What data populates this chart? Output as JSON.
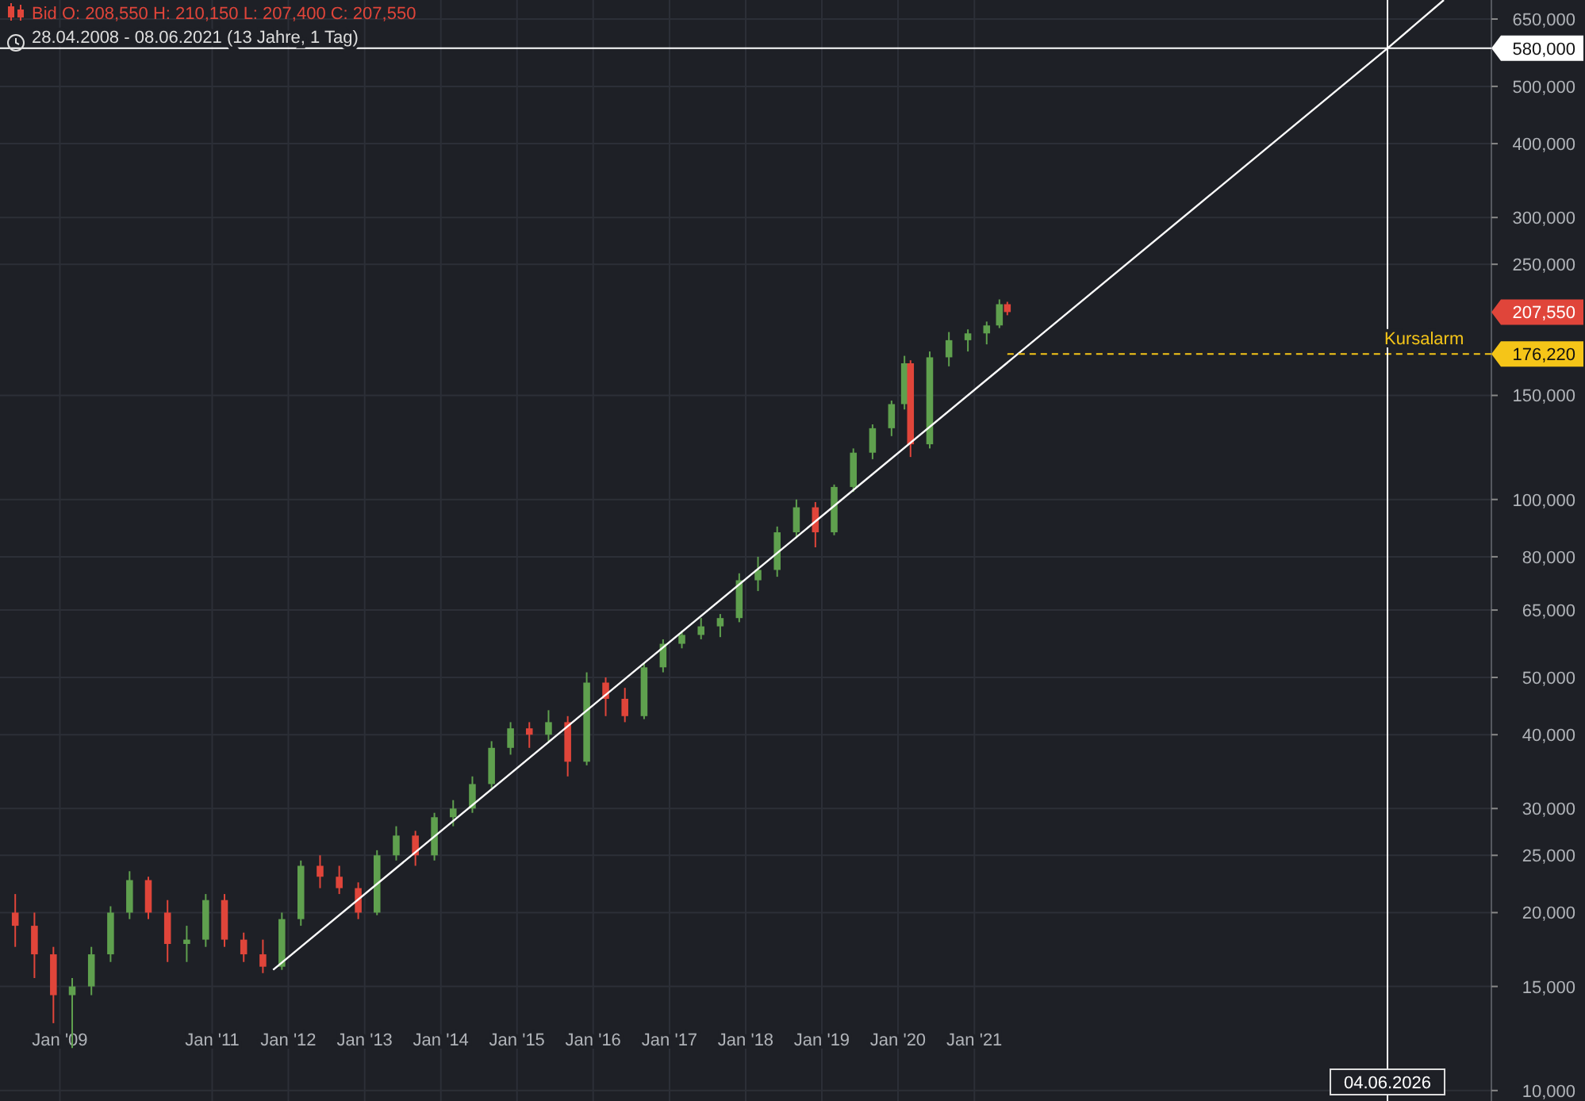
{
  "chart_data": {
    "type": "candlestick",
    "title": "Bid  O: 208,550  H: 210,150  L: 207,400  C: 207,550",
    "subtitle": "28.04.2008 - 08.06.2021  (13 Jahre, 1 Tag)",
    "log": true,
    "grid": true,
    "xlim": [
      "2008-03-20",
      "2027-10-15"
    ],
    "xticks": [
      {
        "value": "2009-01-01",
        "label": "Jan '09"
      },
      {
        "value": "2011-01-01",
        "label": "Jan '11"
      },
      {
        "value": "2012-01-01",
        "label": "Jan '12"
      },
      {
        "value": "2013-01-01",
        "label": "Jan '13"
      },
      {
        "value": "2014-01-01",
        "label": "Jan '14"
      },
      {
        "value": "2015-01-01",
        "label": "Jan '15"
      },
      {
        "value": "2016-01-01",
        "label": "Jan '16"
      },
      {
        "value": "2017-01-01",
        "label": "Jan '17"
      },
      {
        "value": "2018-01-01",
        "label": "Jan '18"
      },
      {
        "value": "2019-01-01",
        "label": "Jan '19"
      },
      {
        "value": "2020-01-01",
        "label": "Jan '20"
      },
      {
        "value": "2021-01-01",
        "label": "Jan '21"
      }
    ],
    "ylim": [
      9600,
      700000
    ],
    "yticks": [
      {
        "value": 10000,
        "label": "10,000"
      },
      {
        "value": 15000,
        "label": "15,000"
      },
      {
        "value": 20000,
        "label": "20,000"
      },
      {
        "value": 25000,
        "label": "25,000"
      },
      {
        "value": 30000,
        "label": "30,000"
      },
      {
        "value": 40000,
        "label": "40,000"
      },
      {
        "value": 50000,
        "label": "50,000"
      },
      {
        "value": 65000,
        "label": "65,000"
      },
      {
        "value": 80000,
        "label": "80,000"
      },
      {
        "value": 100000,
        "label": "100,000"
      },
      {
        "value": 150000,
        "label": "150,000"
      },
      {
        "value": 250000,
        "label": "250,000"
      },
      {
        "value": 300000,
        "label": "300,000"
      },
      {
        "value": 400000,
        "label": "400,000"
      },
      {
        "value": 500000,
        "label": "500,000"
      },
      {
        "value": 650000,
        "label": "650,000"
      }
    ],
    "series": [
      {
        "x": [
          "2008-06",
          "2008-09",
          "2008-12",
          "2009-03",
          "2009-06",
          "2009-09",
          "2009-12",
          "2010-03",
          "2010-06",
          "2010-09",
          "2010-12",
          "2011-03",
          "2011-06",
          "2011-09",
          "2011-12",
          "2012-03",
          "2012-06",
          "2012-09",
          "2012-12",
          "2013-03",
          "2013-06",
          "2013-09",
          "2013-12",
          "2014-03",
          "2014-06",
          "2014-09",
          "2014-12",
          "2015-03",
          "2015-06",
          "2015-09",
          "2015-12",
          "2016-03",
          "2016-06",
          "2016-09",
          "2016-12",
          "2017-03",
          "2017-06",
          "2017-09",
          "2017-12",
          "2018-03",
          "2018-06",
          "2018-09",
          "2018-12",
          "2019-03",
          "2019-06",
          "2019-09",
          "2019-12",
          "2020-02",
          "2020-03",
          "2020-06",
          "2020-09",
          "2020-12",
          "2021-03",
          "2021-05",
          "2021-06-08"
        ],
        "ohlc": [
          [
            20000,
            21500,
            17500,
            19000
          ],
          [
            19000,
            20000,
            15500,
            17000
          ],
          [
            17000,
            17500,
            13000,
            14500
          ],
          [
            14500,
            15500,
            11800,
            15000
          ],
          [
            15000,
            17500,
            14500,
            17000
          ],
          [
            17000,
            20500,
            16500,
            20000
          ],
          [
            20000,
            23500,
            19500,
            22700
          ],
          [
            22700,
            23000,
            19500,
            20000
          ],
          [
            20000,
            21000,
            16500,
            17700
          ],
          [
            17700,
            19000,
            16500,
            18000
          ],
          [
            18000,
            21500,
            17500,
            21000
          ],
          [
            21000,
            21500,
            17500,
            18000
          ],
          [
            18000,
            18500,
            16500,
            17000
          ],
          [
            17000,
            18000,
            15800,
            16200
          ],
          [
            16200,
            20000,
            16000,
            19500
          ],
          [
            19500,
            24500,
            19000,
            24000
          ],
          [
            24000,
            25000,
            22000,
            23000
          ],
          [
            23000,
            24000,
            21500,
            22000
          ],
          [
            22000,
            22500,
            19500,
            20000
          ],
          [
            20000,
            25500,
            19800,
            25000
          ],
          [
            25000,
            28000,
            24500,
            27000
          ],
          [
            27000,
            27500,
            24000,
            25000
          ],
          [
            25000,
            29500,
            24500,
            29000
          ],
          [
            29000,
            31000,
            28000,
            30000
          ],
          [
            30000,
            34000,
            29500,
            33000
          ],
          [
            33000,
            39000,
            32500,
            38000
          ],
          [
            38000,
            42000,
            37000,
            41000
          ],
          [
            41000,
            42000,
            38000,
            40000
          ],
          [
            40000,
            44000,
            39000,
            42000
          ],
          [
            42000,
            43000,
            34000,
            36000
          ],
          [
            36000,
            51000,
            35500,
            49000
          ],
          [
            49000,
            50000,
            43000,
            46000
          ],
          [
            46000,
            48000,
            42000,
            43000
          ],
          [
            43000,
            53000,
            42500,
            52000
          ],
          [
            52000,
            58000,
            51000,
            57000
          ],
          [
            57000,
            60000,
            56000,
            59000
          ],
          [
            59000,
            63000,
            58000,
            61000
          ],
          [
            61000,
            64000,
            58500,
            63000
          ],
          [
            63000,
            75000,
            62000,
            73000
          ],
          [
            73000,
            80000,
            70000,
            76000
          ],
          [
            76000,
            90000,
            74000,
            88000
          ],
          [
            88000,
            100000,
            86000,
            97000
          ],
          [
            97000,
            99000,
            83000,
            88000
          ],
          [
            88000,
            106000,
            87000,
            105000
          ],
          [
            105000,
            122000,
            103000,
            120000
          ],
          [
            120000,
            134000,
            117000,
            132000
          ],
          [
            132000,
            147000,
            128000,
            145000
          ],
          [
            145000,
            175000,
            142000,
            170000
          ],
          [
            170000,
            172000,
            118000,
            124000
          ],
          [
            124000,
            178000,
            122000,
            174000
          ],
          [
            174000,
            192000,
            168000,
            186000
          ],
          [
            186000,
            194000,
            178000,
            191000
          ],
          [
            191000,
            200000,
            183000,
            197000
          ],
          [
            197000,
            218000,
            195000,
            214000
          ],
          [
            214000,
            216000,
            205000,
            207550
          ]
        ],
        "colors": [
          "#e0453a",
          "#e0453a",
          "#e0453a",
          "#5fa04e",
          "#5fa04e",
          "#5fa04e",
          "#5fa04e",
          "#e0453a",
          "#e0453a",
          "#5fa04e",
          "#5fa04e",
          "#e0453a",
          "#e0453a",
          "#e0453a",
          "#5fa04e",
          "#5fa04e",
          "#e0453a",
          "#e0453a",
          "#e0453a",
          "#5fa04e",
          "#5fa04e",
          "#e0453a",
          "#5fa04e",
          "#5fa04e",
          "#5fa04e",
          "#5fa04e",
          "#5fa04e",
          "#e0453a",
          "#5fa04e",
          "#e0453a",
          "#5fa04e",
          "#e0453a",
          "#e0453a",
          "#5fa04e",
          "#5fa04e",
          "#5fa04e",
          "#5fa04e",
          "#5fa04e",
          "#5fa04e",
          "#5fa04e",
          "#5fa04e",
          "#5fa04e",
          "#e0453a",
          "#5fa04e",
          "#5fa04e",
          "#5fa04e",
          "#5fa04e",
          "#5fa04e",
          "#e0453a",
          "#5fa04e",
          "#5fa04e",
          "#5fa04e",
          "#5fa04e",
          "#5fa04e",
          "#e0453a"
        ]
      },
      {
        "type": "line",
        "color": "#ffffff",
        "x": [
          "2011-10-20",
          "2026-06-04",
          "2027-03-01"
        ],
        "values": [
          16000,
          580000,
          700000
        ]
      }
    ],
    "ref_lines": [
      {
        "axis": "y",
        "value": 580000,
        "label": "580,000",
        "color": "#ffffff",
        "line_style": "solid"
      },
      {
        "axis": "y",
        "value": 176220,
        "label": "176,220",
        "color": "#f5c518",
        "line_style": "dashed"
      },
      {
        "axis": "x",
        "value": "2026-06-04",
        "label": "04.06.2026",
        "color": "#ffffff",
        "line_style": "solid"
      }
    ],
    "annotations": [
      "207,550",
      {
        "text": "Kursalarm",
        "x": "2026-06-04",
        "y": 176220
      }
    ]
  }
}
